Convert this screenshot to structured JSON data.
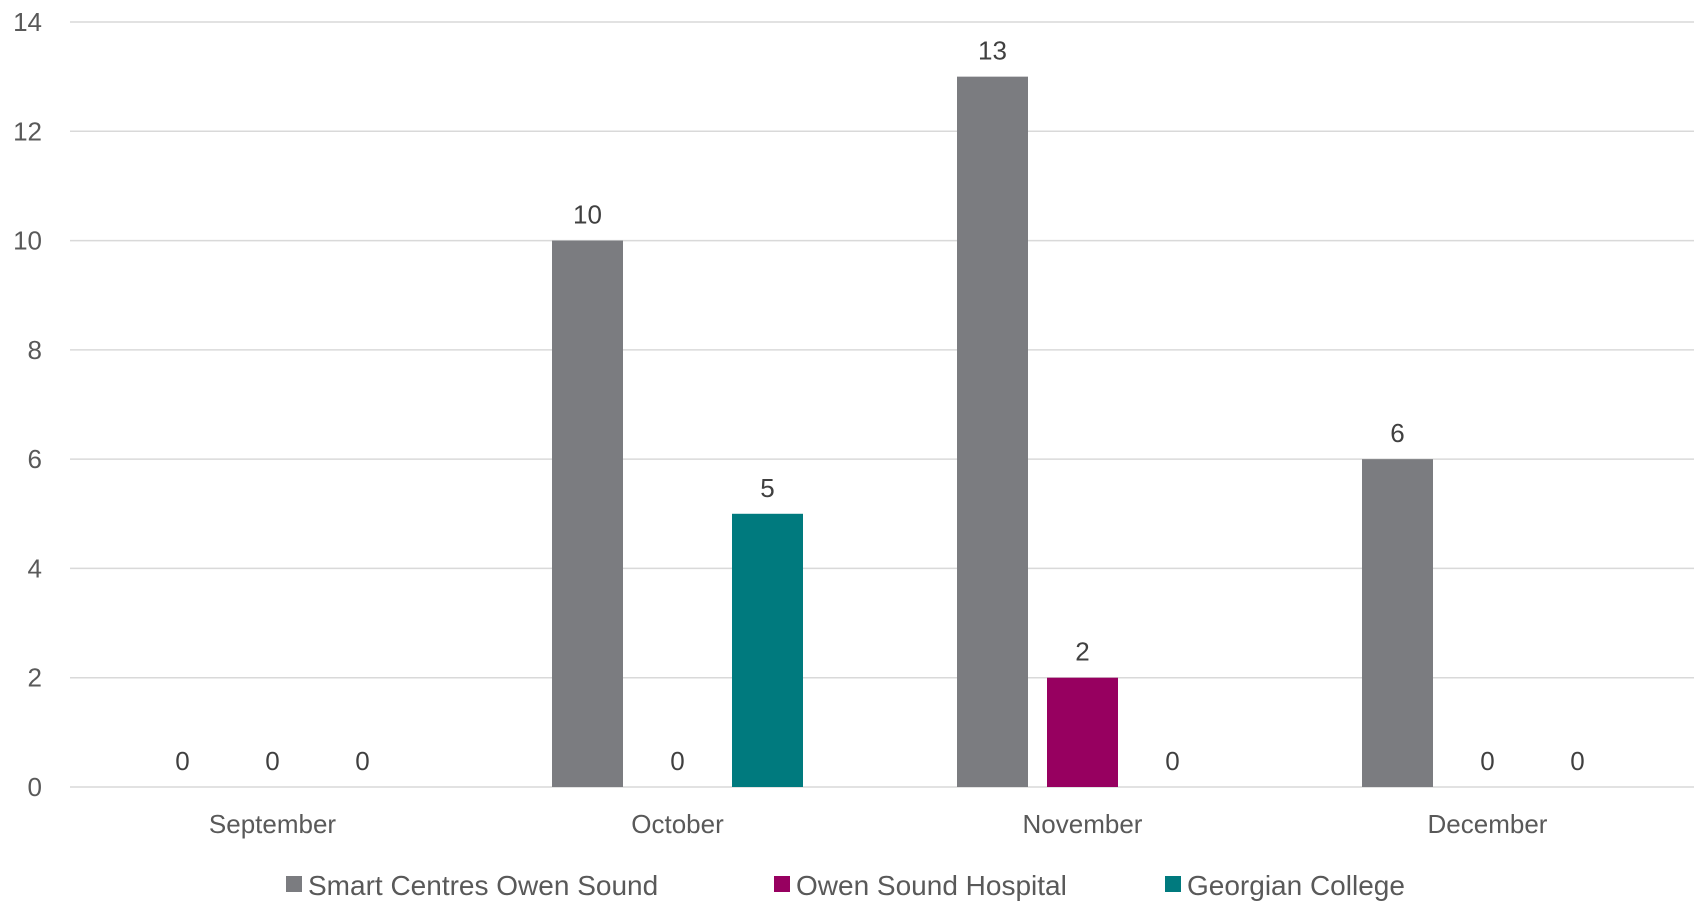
{
  "chart_data": {
    "type": "bar",
    "categories": [
      "September",
      "October",
      "November",
      "December"
    ],
    "series": [
      {
        "name": "Smart Centres Owen Sound",
        "values": [
          0,
          10,
          13,
          6
        ],
        "color": "#7b7c80"
      },
      {
        "name": "Owen Sound Hospital",
        "values": [
          0,
          0,
          2,
          0
        ],
        "color": "#970060"
      },
      {
        "name": "Georgian College",
        "values": [
          0,
          5,
          0,
          0
        ],
        "color": "#007a7e"
      }
    ],
    "ylim": [
      0,
      14
    ],
    "yticks": [
      0,
      2,
      4,
      6,
      8,
      10,
      12,
      14
    ],
    "grid": true,
    "legend_position": "bottom",
    "data_labels": true
  }
}
